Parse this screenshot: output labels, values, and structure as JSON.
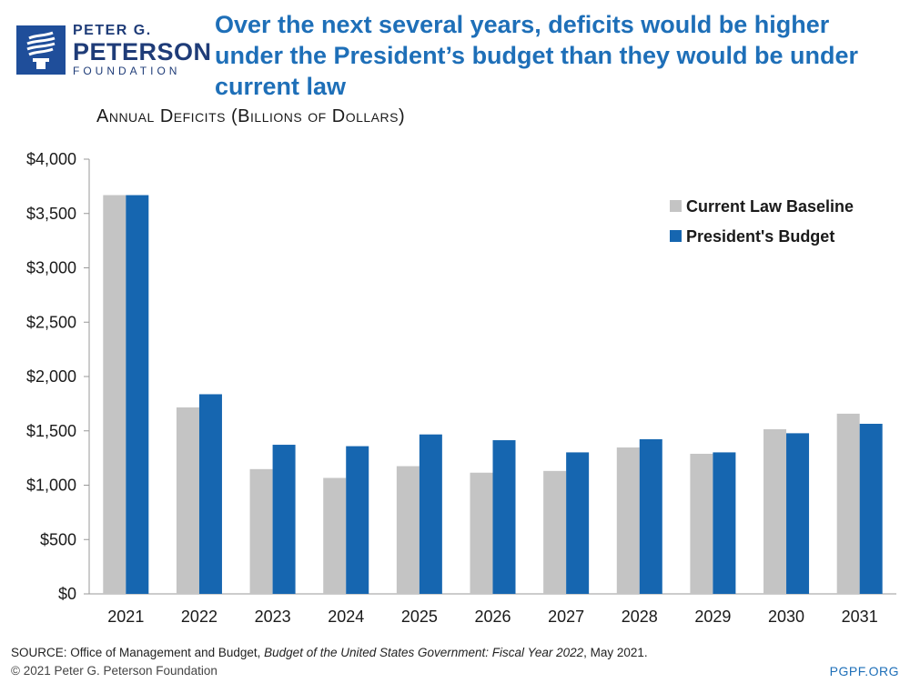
{
  "logo": {
    "line1": "PETER G.",
    "line2": "PETERSON",
    "line3": "FOUNDATION"
  },
  "headline": "Over the next several years, deficits would be higher under the President’s budget than they would be under current law",
  "footer": {
    "source_prefix": "SOURCE: Office of Management and Budget, ",
    "source_title": "Budget of the United States Government: Fiscal Year 2022",
    "source_suffix": ", May 2021.",
    "copyright": "© 2021 Peter G. Peterson Foundation",
    "url": "PGPF.ORG"
  },
  "colors": {
    "brand": "#1f4e9a",
    "baseline": "#c4c4c4",
    "budget": "#1666b0"
  },
  "chart_data": {
    "type": "bar",
    "title": "Annual Deficits (Billions of Dollars)",
    "xlabel": "",
    "ylabel": "",
    "ylim": [
      0,
      4000
    ],
    "yticks": [
      0,
      500,
      1000,
      1500,
      2000,
      2500,
      3000,
      3500,
      4000
    ],
    "ytick_labels": [
      "$0",
      "$500",
      "$1,000",
      "$1,500",
      "$2,000",
      "$2,500",
      "$3,000",
      "$3,500",
      "$4,000"
    ],
    "grid": false,
    "legend_position": "top-right",
    "categories": [
      "2021",
      "2022",
      "2023",
      "2024",
      "2025",
      "2026",
      "2027",
      "2028",
      "2029",
      "2030",
      "2031"
    ],
    "series": [
      {
        "name": "Current Law Baseline",
        "color": "#c4c4c4",
        "values": [
          3669,
          1716,
          1148,
          1067,
          1175,
          1115,
          1131,
          1347,
          1289,
          1515,
          1658
        ]
      },
      {
        "name": "President's Budget",
        "color": "#1666b0",
        "values": [
          3669,
          1837,
          1372,
          1359,
          1467,
          1414,
          1302,
          1423,
          1302,
          1478,
          1565
        ]
      }
    ]
  }
}
